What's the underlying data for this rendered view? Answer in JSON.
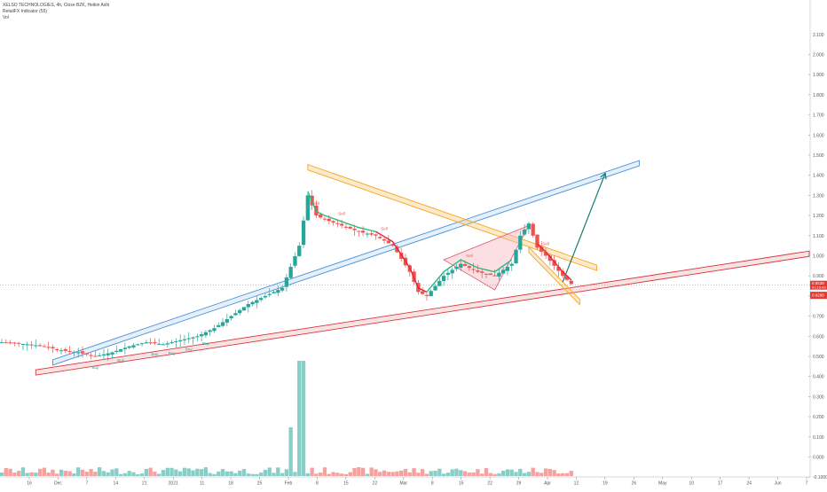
{
  "legend": {
    "symbol": "XELSO TECHNOLOGIES, 4h, Close BZK, Heikin Ashi",
    "indicator": "RetailFX Indicator (55)",
    "volume": "Vol"
  },
  "price_tags": {
    "last": "0.8538",
    "last_sub": "01:15:43",
    "level": "0.8298"
  },
  "colors": {
    "up": "#26a69a",
    "down": "#ef5350",
    "upper_channel": "#4a90d9",
    "lower_channel": "#d9363e",
    "wedge": "#f5a623",
    "wedge_fill": "#f7c266",
    "forecast_arrow": "#167a73",
    "indicator_red": "#e0263b",
    "indicator_green": "#2eb87e"
  },
  "chart_data": {
    "type": "candlestick",
    "y_axis": {
      "scale": "linear",
      "min": 0.0,
      "max": 2.1,
      "ticks": [
        "2.000",
        "1.900",
        "1.800",
        "1.700",
        "1.600",
        "1.500",
        "1.400",
        "1.300",
        "1.200",
        "1.100",
        "1.000",
        "0.900",
        "0.800",
        "0.700",
        "0.600",
        "0.500",
        "0.400",
        "0.300",
        "0.200",
        "0.100",
        "0.000",
        "-0.1000"
      ],
      "top_label": "2.100"
    },
    "x_axis": {
      "tick_labels": [
        "16",
        "Dec",
        "7",
        "14",
        "21",
        "2021",
        "11",
        "18",
        "25",
        "Feb",
        "8",
        "15",
        "22",
        "Mar",
        "8",
        "15",
        "22",
        "29",
        "Apr",
        "12",
        "19",
        "26",
        "May",
        "10",
        "17",
        "24",
        "Jun",
        "7"
      ]
    },
    "price_series": [
      {
        "x": 0,
        "close": 0.57
      },
      {
        "x": 3,
        "close": 0.56
      },
      {
        "x": 5,
        "close": 0.55
      },
      {
        "x": 7,
        "close": 0.53
      },
      {
        "x": 9,
        "close": 0.52
      },
      {
        "x": 11,
        "close": 0.5
      },
      {
        "x": 13,
        "close": 0.52
      },
      {
        "x": 15,
        "close": 0.55
      },
      {
        "x": 17,
        "close": 0.57
      },
      {
        "x": 19,
        "close": 0.56
      },
      {
        "x": 21,
        "close": 0.58
      },
      {
        "x": 23,
        "close": 0.6
      },
      {
        "x": 25,
        "close": 0.64
      },
      {
        "x": 27,
        "close": 0.7
      },
      {
        "x": 29,
        "close": 0.76
      },
      {
        "x": 31,
        "close": 0.8
      },
      {
        "x": 33,
        "close": 0.84
      },
      {
        "x": 35,
        "close": 1.05
      },
      {
        "x": 36,
        "close": 1.3
      },
      {
        "x": 37,
        "close": 1.2
      },
      {
        "x": 38,
        "close": 1.18
      },
      {
        "x": 40,
        "close": 1.15
      },
      {
        "x": 42,
        "close": 1.12
      },
      {
        "x": 44,
        "close": 1.1
      },
      {
        "x": 46,
        "close": 1.05
      },
      {
        "x": 48,
        "close": 0.92
      },
      {
        "x": 49,
        "close": 0.82
      },
      {
        "x": 50,
        "close": 0.8
      },
      {
        "x": 52,
        "close": 0.9
      },
      {
        "x": 54,
        "close": 0.96
      },
      {
        "x": 56,
        "close": 0.92
      },
      {
        "x": 58,
        "close": 0.9
      },
      {
        "x": 60,
        "close": 0.96
      },
      {
        "x": 61,
        "close": 1.1
      },
      {
        "x": 62,
        "close": 1.16
      },
      {
        "x": 63,
        "close": 1.04
      },
      {
        "x": 64,
        "close": 1.0
      },
      {
        "x": 65,
        "close": 0.95
      },
      {
        "x": 66,
        "close": 0.9
      },
      {
        "x": 67,
        "close": 0.86
      }
    ],
    "series_labels": [
      "Buy",
      "Buy",
      "Buy",
      "Buy",
      "Buy",
      "Buy",
      "Sell",
      "Sell",
      "Sell",
      "Sell",
      "Sell"
    ],
    "annotations": [
      {
        "type": "channel",
        "color": "blue",
        "from": {
          "x": 6,
          "y": 0.47
        },
        "to": {
          "x": 75,
          "y": 1.46
        }
      },
      {
        "type": "channel",
        "color": "red",
        "from": {
          "x": 4,
          "y": 0.42
        },
        "to": {
          "x": 95,
          "y": 1.01
        }
      },
      {
        "type": "channel",
        "color": "orange",
        "from": {
          "x": 36,
          "y": 1.44
        },
        "to": {
          "x": 70,
          "y": 0.94
        }
      },
      {
        "type": "channel",
        "color": "orange",
        "from": {
          "x": 62,
          "y": 1.03
        },
        "to": {
          "x": 68,
          "y": 0.77
        }
      },
      {
        "type": "wedge",
        "color": "pink",
        "points": [
          {
            "x": 52,
            "y": 0.98
          },
          {
            "x": 62,
            "y": 1.15
          },
          {
            "x": 58,
            "y": 0.83
          }
        ]
      },
      {
        "type": "arrow",
        "from": {
          "x": 66,
          "y": 0.87
        },
        "to": {
          "x": 71,
          "y": 1.41
        }
      }
    ]
  }
}
